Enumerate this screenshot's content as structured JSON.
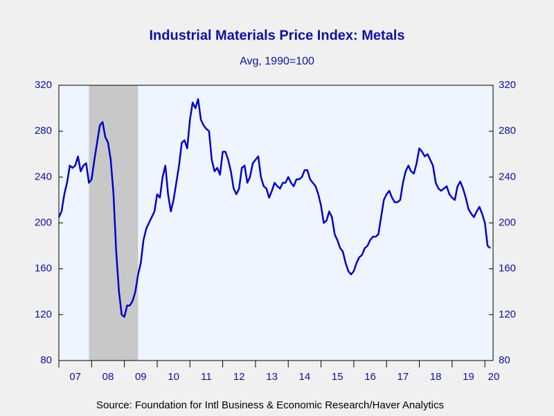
{
  "chart_data": {
    "type": "line",
    "title": "Industrial Materials Price Index: Metals",
    "subtitle": "Avg, 1990=100",
    "source": "Source:  Foundation for Intl Business & Economic Research/Haver Analytics",
    "x": [
      "2007-01",
      "2007-02",
      "2007-03",
      "2007-04",
      "2007-05",
      "2007-06",
      "2007-07",
      "2007-08",
      "2007-09",
      "2007-10",
      "2007-11",
      "2007-12",
      "2008-01",
      "2008-02",
      "2008-03",
      "2008-04",
      "2008-05",
      "2008-06",
      "2008-07",
      "2008-08",
      "2008-09",
      "2008-10",
      "2008-11",
      "2008-12",
      "2009-01",
      "2009-02",
      "2009-03",
      "2009-04",
      "2009-05",
      "2009-06",
      "2009-07",
      "2009-08",
      "2009-09",
      "2009-10",
      "2009-11",
      "2009-12",
      "2010-01",
      "2010-02",
      "2010-03",
      "2010-04",
      "2010-05",
      "2010-06",
      "2010-07",
      "2010-08",
      "2010-09",
      "2010-10",
      "2010-11",
      "2010-12",
      "2011-01",
      "2011-02",
      "2011-03",
      "2011-04",
      "2011-05",
      "2011-06",
      "2011-07",
      "2011-08",
      "2011-09",
      "2011-10",
      "2011-11",
      "2011-12",
      "2012-01",
      "2012-02",
      "2012-03",
      "2012-04",
      "2012-05",
      "2012-06",
      "2012-07",
      "2012-08",
      "2012-09",
      "2012-10",
      "2012-11",
      "2012-12",
      "2013-01",
      "2013-02",
      "2013-03",
      "2013-04",
      "2013-05",
      "2013-06",
      "2013-07",
      "2013-08",
      "2013-09",
      "2013-10",
      "2013-11",
      "2013-12",
      "2014-01",
      "2014-02",
      "2014-03",
      "2014-04",
      "2014-05",
      "2014-06",
      "2014-07",
      "2014-08",
      "2014-09",
      "2014-10",
      "2014-11",
      "2014-12",
      "2015-01",
      "2015-02",
      "2015-03",
      "2015-04",
      "2015-05",
      "2015-06",
      "2015-07",
      "2015-08",
      "2015-09",
      "2015-10",
      "2015-11",
      "2015-12",
      "2016-01",
      "2016-02",
      "2016-03",
      "2016-04",
      "2016-05",
      "2016-06",
      "2016-07",
      "2016-08",
      "2016-09",
      "2016-10",
      "2016-11",
      "2016-12",
      "2017-01",
      "2017-02",
      "2017-03",
      "2017-04",
      "2017-05",
      "2017-06",
      "2017-07",
      "2017-08",
      "2017-09",
      "2017-10",
      "2017-11",
      "2017-12",
      "2018-01",
      "2018-02",
      "2018-03",
      "2018-04",
      "2018-05",
      "2018-06",
      "2018-07",
      "2018-08",
      "2018-09",
      "2018-10",
      "2018-11",
      "2018-12",
      "2019-01",
      "2019-02",
      "2019-03",
      "2019-04",
      "2019-05",
      "2019-06",
      "2019-07",
      "2019-08",
      "2019-09",
      "2019-10",
      "2019-11",
      "2019-12",
      "2020-01",
      "2020-02",
      "2020-03"
    ],
    "series": [
      {
        "name": "Metals",
        "color": "#0000cc",
        "values": [
          205,
          210,
          225,
          235,
          250,
          248,
          250,
          258,
          245,
          250,
          252,
          235,
          238,
          255,
          270,
          285,
          288,
          275,
          270,
          255,
          225,
          175,
          140,
          120,
          118,
          128,
          128,
          132,
          140,
          155,
          165,
          185,
          195,
          200,
          205,
          210,
          225,
          222,
          240,
          250,
          225,
          210,
          220,
          235,
          250,
          270,
          272,
          265,
          290,
          305,
          300,
          308,
          290,
          285,
          282,
          280,
          255,
          245,
          248,
          242,
          262,
          262,
          255,
          245,
          230,
          225,
          230,
          248,
          250,
          235,
          240,
          252,
          255,
          258,
          240,
          232,
          230,
          222,
          228,
          235,
          232,
          230,
          235,
          235,
          240,
          235,
          232,
          238,
          238,
          240,
          246,
          246,
          238,
          235,
          232,
          225,
          215,
          200,
          202,
          210,
          205,
          190,
          185,
          178,
          175,
          165,
          158,
          155,
          158,
          165,
          170,
          172,
          178,
          180,
          185,
          188,
          188,
          190,
          205,
          220,
          225,
          228,
          222,
          218,
          218,
          220,
          235,
          245,
          250,
          245,
          243,
          252,
          265,
          262,
          258,
          260,
          255,
          250,
          235,
          230,
          228,
          230,
          232,
          225,
          222,
          220,
          232,
          236,
          230,
          222,
          212,
          208,
          205,
          210,
          214,
          208,
          200,
          180,
          178
        ]
      }
    ],
    "xlim": [
      "2007-01",
      "2020-04"
    ],
    "xticks": [
      {
        "value": "2007-01",
        "label": "07"
      },
      {
        "value": "2008-01",
        "label": "08"
      },
      {
        "value": "2009-01",
        "label": "09"
      },
      {
        "value": "2010-01",
        "label": "10"
      },
      {
        "value": "2011-01",
        "label": "11"
      },
      {
        "value": "2012-01",
        "label": "12"
      },
      {
        "value": "2013-01",
        "label": "13"
      },
      {
        "value": "2014-01",
        "label": "14"
      },
      {
        "value": "2015-01",
        "label": "15"
      },
      {
        "value": "2016-01",
        "label": "16"
      },
      {
        "value": "2017-01",
        "label": "17"
      },
      {
        "value": "2018-01",
        "label": "18"
      },
      {
        "value": "2019-01",
        "label": "19"
      },
      {
        "value": "2020-01",
        "label": "20"
      }
    ],
    "ylim": [
      80,
      320
    ],
    "yticks": [
      80,
      120,
      160,
      200,
      240,
      280,
      320
    ],
    "recession": [
      {
        "start": "2007-12",
        "end": "2009-06",
        "color": "#c8c8c8"
      }
    ]
  }
}
